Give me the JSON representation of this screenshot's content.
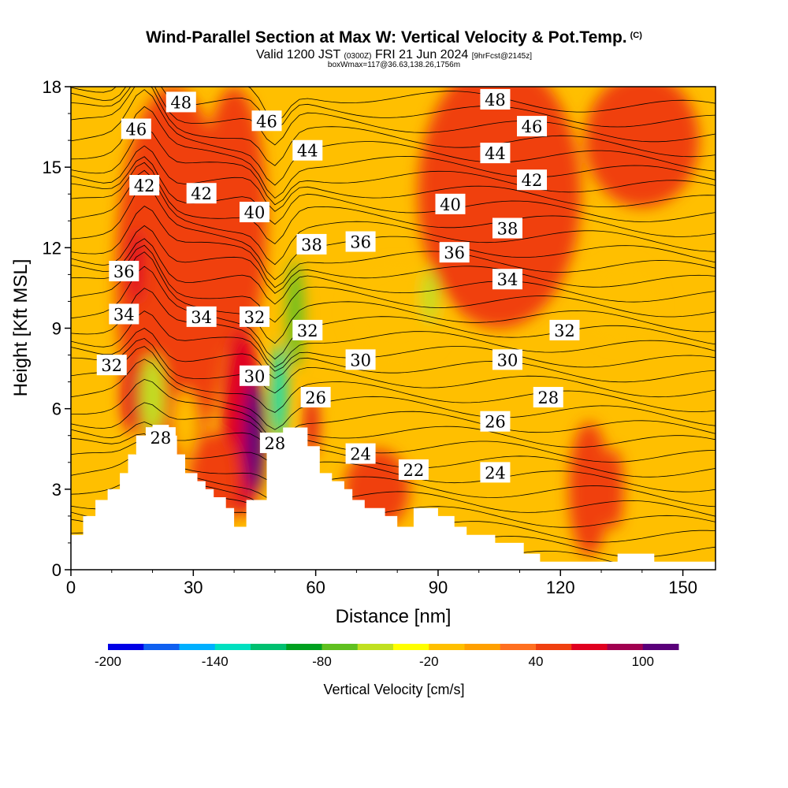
{
  "header": {
    "title": "Wind-Parallel Section at Max W: Vertical Velocity & Pot.Temp.",
    "title_suffix": "(C)",
    "valid_prefix": "Valid 1200 JST",
    "valid_small": "(0300Z)",
    "valid_date": "FRI 21 Jun 2024",
    "valid_fcst": "[9hrFcst@2145z]",
    "box_line": "boxWmax=117@36.63,138.26,1756m"
  },
  "chart_data": {
    "type": "heatmap",
    "xlabel": "Distance [nm]",
    "ylabel": "Height [Kft MSL]",
    "xlim": [
      0,
      158
    ],
    "ylim": [
      0,
      18
    ],
    "x_ticks": [
      0,
      30,
      60,
      90,
      120,
      150
    ],
    "y_ticks": [
      0,
      3,
      6,
      9,
      12,
      15,
      18
    ],
    "colorbar": {
      "label": "Vertical Velocity [cm/s]",
      "tick_labels": [
        "-200",
        "-140",
        "-80",
        "-20",
        "40",
        "100"
      ],
      "colors": [
        "#0000e6",
        "#1060f0",
        "#00b0ff",
        "#00e0c0",
        "#00c070",
        "#00a020",
        "#60c020",
        "#c0e020",
        "#ffff00",
        "#ffc000",
        "#ffa000",
        "#ff7020",
        "#f04010",
        "#e00020",
        "#a00050",
        "#5a007a"
      ]
    },
    "background_color": "#ffbf00",
    "terrain": [
      [
        0,
        1.3
      ],
      [
        3,
        1.3
      ],
      [
        3,
        2.0
      ],
      [
        6,
        2.0
      ],
      [
        6,
        2.6
      ],
      [
        9,
        2.6
      ],
      [
        9,
        3.0
      ],
      [
        12,
        3.0
      ],
      [
        12,
        3.6
      ],
      [
        14,
        3.6
      ],
      [
        14,
        4.3
      ],
      [
        16,
        4.3
      ],
      [
        16,
        5.0
      ],
      [
        20,
        5.0
      ],
      [
        20,
        5.4
      ],
      [
        24,
        5.4
      ],
      [
        24,
        5.0
      ],
      [
        26,
        5.0
      ],
      [
        26,
        4.3
      ],
      [
        28,
        4.3
      ],
      [
        28,
        3.6
      ],
      [
        31,
        3.6
      ],
      [
        31,
        3.3
      ],
      [
        33,
        3.3
      ],
      [
        33,
        3.0
      ],
      [
        35,
        3.0
      ],
      [
        35,
        2.7
      ],
      [
        38,
        2.7
      ],
      [
        38,
        2.3
      ],
      [
        40,
        2.3
      ],
      [
        40,
        1.6
      ],
      [
        43,
        1.6
      ],
      [
        43,
        2.6
      ],
      [
        48,
        2.6
      ],
      [
        48,
        4.6
      ],
      [
        52,
        4.6
      ],
      [
        52,
        5.3
      ],
      [
        58,
        5.3
      ],
      [
        58,
        4.6
      ],
      [
        61,
        4.6
      ],
      [
        61,
        3.6
      ],
      [
        64,
        3.6
      ],
      [
        64,
        3.3
      ],
      [
        67,
        3.3
      ],
      [
        67,
        3.0
      ],
      [
        69,
        3.0
      ],
      [
        69,
        2.6
      ],
      [
        72,
        2.6
      ],
      [
        72,
        2.3
      ],
      [
        77,
        2.3
      ],
      [
        77,
        2.0
      ],
      [
        80,
        2.0
      ],
      [
        80,
        1.6
      ],
      [
        84,
        1.6
      ],
      [
        84,
        2.3
      ],
      [
        90,
        2.3
      ],
      [
        90,
        2.0
      ],
      [
        94,
        2.0
      ],
      [
        94,
        1.6
      ],
      [
        97,
        1.6
      ],
      [
        97,
        1.3
      ],
      [
        104,
        1.3
      ],
      [
        104,
        1.0
      ],
      [
        111,
        1.0
      ],
      [
        111,
        0.6
      ],
      [
        115,
        0.6
      ],
      [
        115,
        0.3
      ],
      [
        134,
        0.3
      ],
      [
        134,
        0.6
      ],
      [
        143,
        0.6
      ],
      [
        143,
        0.3
      ],
      [
        158,
        0.3
      ]
    ],
    "fields": [
      {
        "x": 25,
        "y": 11,
        "value": 40,
        "rx": 14,
        "ry": 7
      },
      {
        "x": 40,
        "y": 13,
        "value": 40,
        "rx": 8,
        "ry": 5
      },
      {
        "x": 105,
        "y": 14,
        "value": 40,
        "rx": 20,
        "ry": 5
      },
      {
        "x": 140,
        "y": 16,
        "value": 40,
        "rx": 14,
        "ry": 2.5
      },
      {
        "x": 15,
        "y": 6.5,
        "value": 60,
        "rx": 2.5,
        "ry": 1.4
      },
      {
        "x": 16,
        "y": 11.3,
        "value": 60,
        "rx": 2,
        "ry": 1.4
      },
      {
        "x": 42,
        "y": 5.5,
        "value": 60,
        "rx": 5,
        "ry": 3.5
      },
      {
        "x": 45,
        "y": 5.0,
        "value": 100,
        "rx": 2.5,
        "ry": 2.2
      },
      {
        "x": 59,
        "y": 5.4,
        "value": 60,
        "rx": 1.5,
        "ry": 1.2
      },
      {
        "x": 35,
        "y": 3.3,
        "value": 40,
        "rx": 6,
        "ry": 1.8
      },
      {
        "x": 75,
        "y": 3.0,
        "value": 40,
        "rx": 8,
        "ry": 1.5
      },
      {
        "x": 127,
        "y": 3.0,
        "value": 40,
        "rx": 5,
        "ry": 2.5
      },
      {
        "x": 133,
        "y": 3.0,
        "value": 40,
        "rx": 2.5,
        "ry": 1.5
      },
      {
        "x": 20,
        "y": 6.5,
        "value": -60,
        "rx": 3,
        "ry": 1.5
      },
      {
        "x": 28,
        "y": 5.5,
        "value": -20,
        "rx": 3,
        "ry": 1.2
      },
      {
        "x": 51,
        "y": 6.6,
        "value": -140,
        "rx": 1.8,
        "ry": 1.8
      },
      {
        "x": 55,
        "y": 9.5,
        "value": -80,
        "rx": 2,
        "ry": 2.0
      },
      {
        "x": 80,
        "y": 9.6,
        "value": -20,
        "rx": 12,
        "ry": 1.8
      },
      {
        "x": 135,
        "y": 9.9,
        "value": -20,
        "rx": 9,
        "ry": 1.5
      },
      {
        "x": 88,
        "y": 10.2,
        "value": -50,
        "rx": 2,
        "ry": 1.0
      }
    ],
    "isotherm_labels": [
      {
        "x": 27,
        "y": 17.4,
        "text": "48"
      },
      {
        "x": 48,
        "y": 16.7,
        "text": "46"
      },
      {
        "x": 16,
        "y": 16.4,
        "text": "46"
      },
      {
        "x": 58,
        "y": 15.6,
        "text": "44"
      },
      {
        "x": 18,
        "y": 14.3,
        "text": "42"
      },
      {
        "x": 32,
        "y": 14.0,
        "text": "42"
      },
      {
        "x": 45,
        "y": 13.3,
        "text": "40"
      },
      {
        "x": 59,
        "y": 12.1,
        "text": "38"
      },
      {
        "x": 71,
        "y": 12.2,
        "text": "36"
      },
      {
        "x": 13,
        "y": 11.1,
        "text": "36"
      },
      {
        "x": 13,
        "y": 9.5,
        "text": "34"
      },
      {
        "x": 32,
        "y": 9.4,
        "text": "34"
      },
      {
        "x": 45,
        "y": 9.4,
        "text": "32"
      },
      {
        "x": 58,
        "y": 8.9,
        "text": "32"
      },
      {
        "x": 10,
        "y": 7.6,
        "text": "32"
      },
      {
        "x": 45,
        "y": 7.2,
        "text": "30"
      },
      {
        "x": 71,
        "y": 7.8,
        "text": "30"
      },
      {
        "x": 60,
        "y": 6.4,
        "text": "26"
      },
      {
        "x": 50,
        "y": 4.7,
        "text": "28"
      },
      {
        "x": 22,
        "y": 4.9,
        "text": "28"
      },
      {
        "x": 71,
        "y": 4.3,
        "text": "24"
      },
      {
        "x": 84,
        "y": 3.7,
        "text": "22"
      },
      {
        "x": 104,
        "y": 17.5,
        "text": "48"
      },
      {
        "x": 113,
        "y": 16.5,
        "text": "46"
      },
      {
        "x": 104,
        "y": 15.5,
        "text": "44"
      },
      {
        "x": 113,
        "y": 14.5,
        "text": "42"
      },
      {
        "x": 93,
        "y": 13.6,
        "text": "40"
      },
      {
        "x": 107,
        "y": 12.7,
        "text": "38"
      },
      {
        "x": 94,
        "y": 11.8,
        "text": "36"
      },
      {
        "x": 107,
        "y": 10.8,
        "text": "34"
      },
      {
        "x": 121,
        "y": 8.9,
        "text": "32"
      },
      {
        "x": 107,
        "y": 7.8,
        "text": "30"
      },
      {
        "x": 117,
        "y": 6.4,
        "text": "28"
      },
      {
        "x": 104,
        "y": 5.5,
        "text": "26"
      },
      {
        "x": 104,
        "y": 3.6,
        "text": "24"
      }
    ]
  }
}
